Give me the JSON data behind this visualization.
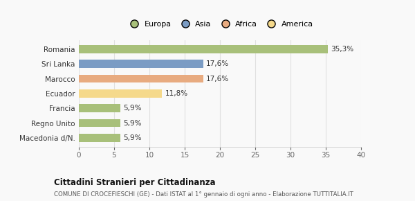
{
  "categories": [
    "Macedonia d/N.",
    "Regno Unito",
    "Francia",
    "Ecuador",
    "Marocco",
    "Sri Lanka",
    "Romania"
  ],
  "values": [
    5.9,
    5.9,
    5.9,
    11.8,
    17.6,
    17.6,
    35.3
  ],
  "labels": [
    "5,9%",
    "5,9%",
    "5,9%",
    "11,8%",
    "17,6%",
    "17,6%",
    "35,3%"
  ],
  "colors": [
    "#a8c07a",
    "#a8c07a",
    "#a8c07a",
    "#f5d98b",
    "#e8ab80",
    "#7b9cc4",
    "#a8c07a"
  ],
  "legend_entries": [
    {
      "label": "Europa",
      "color": "#a8c07a"
    },
    {
      "label": "Asia",
      "color": "#7b9cc4"
    },
    {
      "label": "Africa",
      "color": "#e8ab80"
    },
    {
      "label": "America",
      "color": "#f5d98b"
    }
  ],
  "xlim": [
    0,
    40
  ],
  "xticks": [
    0,
    5,
    10,
    15,
    20,
    25,
    30,
    35,
    40
  ],
  "title_bold": "Cittadini Stranieri per Cittadinanza",
  "subtitle": "COMUNE DI CROCEFIESCHI (GE) - Dati ISTAT al 1° gennaio di ogni anno - Elaborazione TUTTITALIA.IT",
  "background_color": "#f9f9f9",
  "bar_height": 0.55,
  "grid_color": "#e0e0e0"
}
